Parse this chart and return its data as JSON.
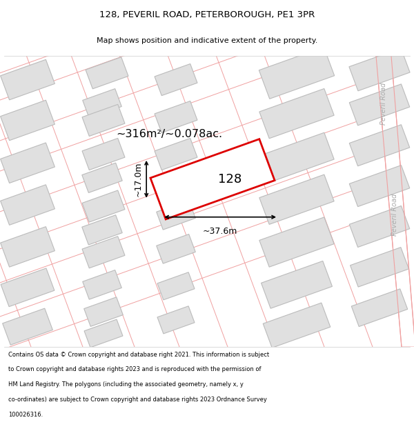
{
  "title_line1": "128, PEVERIL ROAD, PETERBOROUGH, PE1 3PR",
  "title_line2": "Map shows position and indicative extent of the property.",
  "area_text": "~316m²/~0.078ac.",
  "label_128": "128",
  "dim_width": "~37.6m",
  "dim_height": "~17.0m",
  "road_label_top": "Peveril Road",
  "road_label_right": "Peveril Road",
  "footer_lines": [
    "Contains OS data © Crown copyright and database right 2021. This information is subject",
    "to Crown copyright and database rights 2023 and is reproduced with the permission of",
    "HM Land Registry. The polygons (including the associated geometry, namely x, y",
    "co-ordinates) are subject to Crown copyright and database rights 2023 Ordnance Survey",
    "100026316."
  ],
  "bg_color": "#ffffff",
  "building_fill": "#e0e0e0",
  "building_edge": "#bbbbbb",
  "road_line_color": "#f0a0a0",
  "highlight_color": "#dd0000",
  "dim_line_color": "#000000",
  "text_color": "#000000",
  "road_bg": "#ffffff",
  "road_label_color": "#aaaaaa",
  "map_bg": "#f8f8f8"
}
